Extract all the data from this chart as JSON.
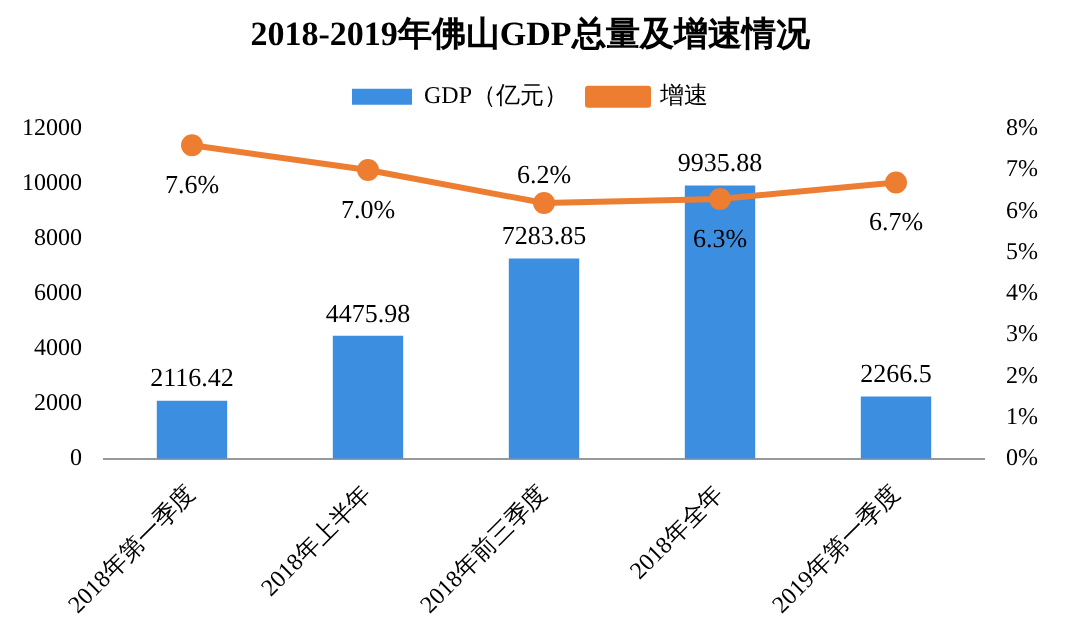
{
  "chart_data": {
    "type": "bar",
    "title": "2018-2019年佛山GDP总量及增速情况",
    "categories": [
      "2018年第一季度",
      "2018年上半年",
      "2018年前三季度",
      "2018年全年",
      "2019年第一季度"
    ],
    "series": [
      {
        "name": "GDP（亿元）",
        "color": "#3c8fe0",
        "values": [
          2116.42,
          4475.98,
          7283.85,
          9935.88,
          2266.5
        ],
        "value_labels": [
          "2116.42",
          "4475.98",
          "7283.85",
          "9935.88",
          "2266.5"
        ]
      },
      {
        "name": "增速",
        "type": "line",
        "axis": "y2",
        "color": "#ed7d31",
        "values": [
          7.6,
          7.0,
          6.2,
          6.3,
          6.7
        ],
        "value_labels": [
          "7.6%",
          "7.0%",
          "6.2%",
          "6.3%",
          "6.7%"
        ]
      }
    ],
    "ylim": [
      0,
      12000
    ],
    "yticks": [
      0,
      2000,
      4000,
      6000,
      8000,
      10000,
      12000
    ],
    "y2lim": [
      0,
      8
    ],
    "y2ticks": [
      {
        "value": 0,
        "label": "0%"
      },
      {
        "value": 1,
        "label": "1%"
      },
      {
        "value": 2,
        "label": "2%"
      },
      {
        "value": 3,
        "label": "3%"
      },
      {
        "value": 4,
        "label": "4%"
      },
      {
        "value": 5,
        "label": "5%"
      },
      {
        "value": 6,
        "label": "6%"
      },
      {
        "value": 7,
        "label": "7%"
      },
      {
        "value": 8,
        "label": "8%"
      }
    ],
    "grid": false,
    "legend": "top",
    "marker": "circle"
  }
}
